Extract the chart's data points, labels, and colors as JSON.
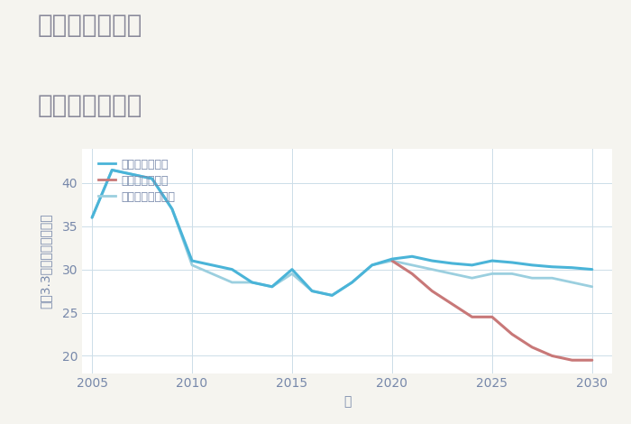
{
  "title_line1": "兵庫県妻鹿駅の",
  "title_line2": "土地の価格推移",
  "xlabel": "年",
  "ylabel": "坪（3.3㎡）単価（万円）",
  "background_color": "#f5f4ef",
  "plot_bg_color": "#ffffff",
  "xlim": [
    2004.5,
    2031
  ],
  "ylim": [
    18,
    44
  ],
  "yticks": [
    20,
    25,
    30,
    35,
    40
  ],
  "xticks": [
    2005,
    2010,
    2015,
    2020,
    2025,
    2030
  ],
  "grid_color": "#ccdde8",
  "good_scenario": {
    "label": "グッドシナリオ",
    "color": "#4ab4d8",
    "linewidth": 2.2,
    "years": [
      2005,
      2006,
      2007,
      2008,
      2009,
      2010,
      2011,
      2012,
      2013,
      2014,
      2015,
      2016,
      2017,
      2018,
      2019,
      2020,
      2021,
      2022,
      2023,
      2024,
      2025,
      2026,
      2027,
      2028,
      2029,
      2030
    ],
    "values": [
      36.0,
      41.5,
      41.0,
      40.5,
      37.0,
      31.0,
      30.5,
      30.0,
      28.5,
      28.0,
      30.0,
      27.5,
      27.0,
      28.5,
      30.5,
      31.2,
      31.5,
      31.0,
      30.7,
      30.5,
      31.0,
      30.8,
      30.5,
      30.3,
      30.2,
      30.0
    ]
  },
  "bad_scenario": {
    "label": "バッドシナリオ",
    "color": "#c87878",
    "linewidth": 2.2,
    "years": [
      2020,
      2021,
      2022,
      2023,
      2024,
      2025,
      2026,
      2027,
      2028,
      2029,
      2030
    ],
    "values": [
      31.0,
      29.5,
      27.5,
      26.0,
      24.5,
      24.5,
      22.5,
      21.0,
      20.0,
      19.5,
      19.5
    ]
  },
  "normal_scenario": {
    "label": "ノーマルシナリオ",
    "color": "#9bcfdf",
    "linewidth": 2.0,
    "years": [
      2005,
      2006,
      2007,
      2008,
      2009,
      2010,
      2011,
      2012,
      2013,
      2014,
      2015,
      2016,
      2017,
      2018,
      2019,
      2020,
      2021,
      2022,
      2023,
      2024,
      2025,
      2026,
      2027,
      2028,
      2029,
      2030
    ],
    "values": [
      36.0,
      41.5,
      41.0,
      40.5,
      37.0,
      30.5,
      29.5,
      28.5,
      28.5,
      28.0,
      29.5,
      27.5,
      27.0,
      28.5,
      30.5,
      31.0,
      30.5,
      30.0,
      29.5,
      29.0,
      29.5,
      29.5,
      29.0,
      29.0,
      28.5,
      28.0
    ]
  },
  "legend_fontsize": 9,
  "title_fontsize": 20,
  "tick_fontsize": 10,
  "label_fontsize": 10,
  "title_color": "#888899",
  "tick_color": "#7788aa",
  "label_color": "#7788aa"
}
